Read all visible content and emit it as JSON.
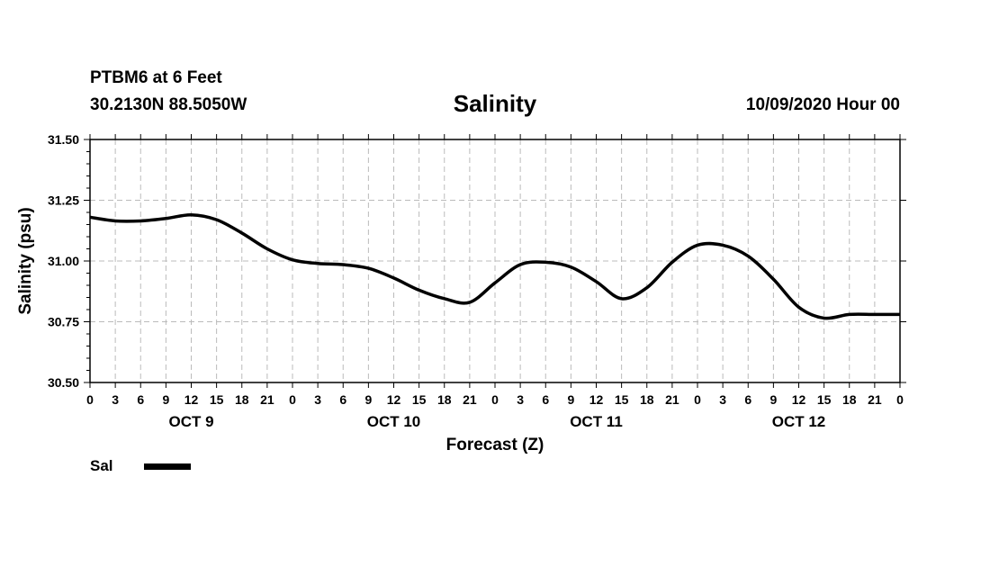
{
  "header": {
    "station": "PTBM6 at 6 Feet",
    "coords": "30.2130N 88.5050W",
    "title": "Salinity",
    "date": "10/09/2020 Hour 00"
  },
  "legend": {
    "label": "Sal"
  },
  "chart_data": {
    "type": "line",
    "title": "Salinity",
    "xlabel": "Forecast (Z)",
    "ylabel": "Salinity (psu)",
    "ylim": [
      30.5,
      31.5
    ],
    "xlim_hours": [
      0,
      96
    ],
    "x_unit": "forecast hour from 10/09/2020 00Z",
    "yticks": [
      "30.50",
      "30.75",
      "31.00",
      "31.25",
      "31.50"
    ],
    "xtick_labels": [
      "0",
      "3",
      "6",
      "9",
      "12",
      "15",
      "18",
      "21",
      "0",
      "3",
      "6",
      "9",
      "12",
      "15",
      "18",
      "21",
      "0",
      "3",
      "6",
      "9",
      "12",
      "15",
      "18",
      "21",
      "0",
      "3",
      "6",
      "9",
      "12",
      "15",
      "18",
      "21",
      "0"
    ],
    "day_labels": [
      {
        "label": "OCT 9",
        "hour": 12
      },
      {
        "label": "OCT 10",
        "hour": 36
      },
      {
        "label": "OCT 11",
        "hour": 60
      },
      {
        "label": "OCT 12",
        "hour": 84
      }
    ],
    "grid": true,
    "series": [
      {
        "name": "Sal",
        "color": "#000000",
        "x": [
          0,
          3,
          6,
          9,
          12,
          15,
          18,
          21,
          24,
          27,
          30,
          33,
          36,
          39,
          42,
          45,
          48,
          51,
          54,
          57,
          60,
          63,
          66,
          69,
          72,
          75,
          78,
          81,
          84,
          87,
          90,
          93,
          96
        ],
        "y": [
          31.18,
          31.165,
          31.165,
          31.175,
          31.19,
          31.17,
          31.115,
          31.05,
          31.005,
          30.99,
          30.985,
          30.97,
          30.93,
          30.88,
          30.845,
          30.83,
          30.91,
          30.985,
          30.995,
          30.975,
          30.915,
          30.845,
          30.89,
          30.995,
          31.065,
          31.065,
          31.02,
          30.925,
          30.81,
          30.765,
          30.78,
          30.78,
          30.78
        ]
      }
    ]
  }
}
